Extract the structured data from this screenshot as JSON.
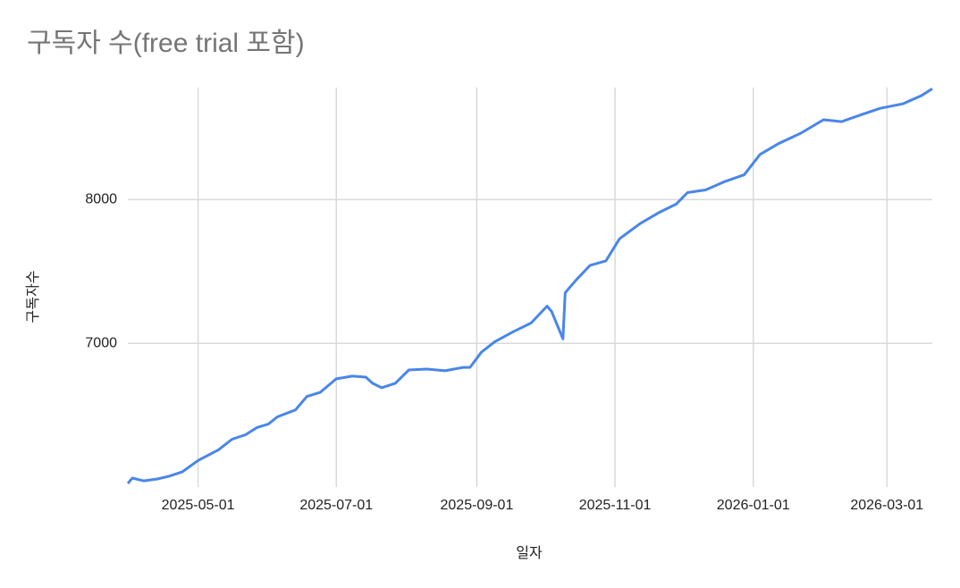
{
  "chart_data": {
    "type": "line",
    "title": "구독자 수(free trial 포함)",
    "x_label": "일자",
    "y_label": "구독자수",
    "x": [
      "2025-03-31",
      "2025-04-02",
      "2025-04-07",
      "2025-04-13",
      "2025-04-18",
      "2025-04-24",
      "2025-05-01",
      "2025-05-10",
      "2025-05-16",
      "2025-05-22",
      "2025-05-27",
      "2025-06-01",
      "2025-06-05",
      "2025-06-13",
      "2025-06-18",
      "2025-06-24",
      "2025-07-01",
      "2025-07-08",
      "2025-07-14",
      "2025-07-17",
      "2025-07-21",
      "2025-07-27",
      "2025-08-02",
      "2025-08-10",
      "2025-08-18",
      "2025-08-26",
      "2025-08-29",
      "2025-09-03",
      "2025-09-09",
      "2025-09-17",
      "2025-09-25",
      "2025-10-02",
      "2025-10-04",
      "2025-10-09",
      "2025-10-10",
      "2025-10-15",
      "2025-10-21",
      "2025-10-28",
      "2025-11-03",
      "2025-11-12",
      "2025-11-20",
      "2025-11-28",
      "2025-12-03",
      "2025-12-11",
      "2025-12-19",
      "2025-12-28",
      "2026-01-04",
      "2026-01-12",
      "2026-01-22",
      "2026-02-01",
      "2026-02-09",
      "2026-02-18",
      "2026-02-26",
      "2026-03-08",
      "2026-03-16",
      "2026-03-21"
    ],
    "series": [
      {
        "name": "구독자수",
        "color": "#4a86e8",
        "values": [
          6025,
          6062,
          6043,
          6056,
          6074,
          6105,
          6185,
          6259,
          6333,
          6364,
          6414,
          6438,
          6488,
          6537,
          6630,
          6660,
          6753,
          6772,
          6765,
          6722,
          6691,
          6722,
          6815,
          6821,
          6809,
          6833,
          6833,
          6938,
          7012,
          7080,
          7142,
          7259,
          7222,
          7031,
          7352,
          7444,
          7543,
          7574,
          7728,
          7833,
          7907,
          7969,
          8049,
          8068,
          8123,
          8173,
          8315,
          8389,
          8463,
          8556,
          8543,
          8593,
          8636,
          8667,
          8722,
          8772
        ]
      }
    ],
    "xlim": [
      "2025-03-31",
      "2026-03-21"
    ],
    "xticks": [
      "2025-05-01",
      "2025-07-01",
      "2025-09-01",
      "2025-11-01",
      "2026-01-01",
      "2026-03-01"
    ],
    "ylim": [
      6000,
      8780
    ],
    "yticks": [
      7000,
      8000
    ],
    "grid": true
  }
}
